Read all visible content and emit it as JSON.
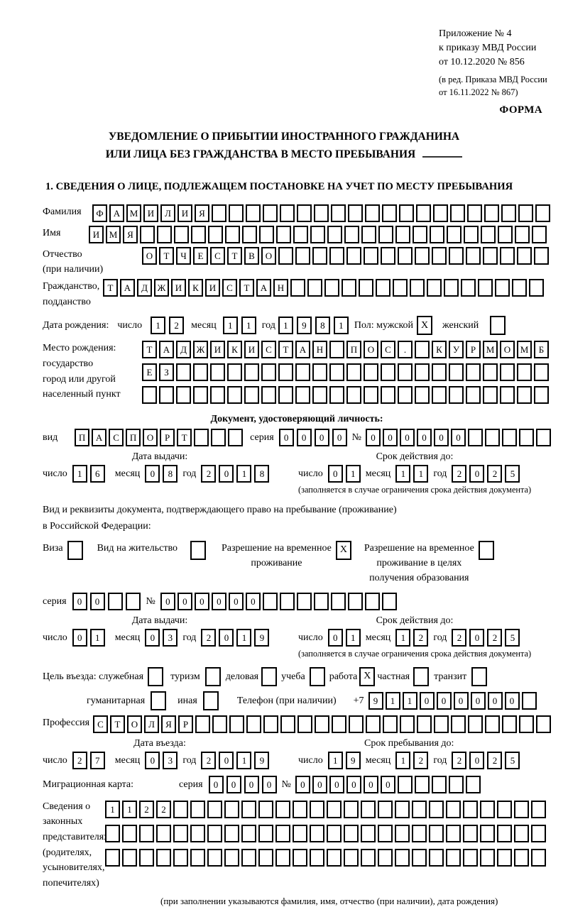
{
  "header": {
    "appendix_lines": [
      "Приложение № 4",
      "к приказу МВД России",
      "от 10.12.2020 № 856"
    ],
    "amendment_lines": [
      "(в ред. Приказа МВД России",
      "от 16.11.2022 № 867)"
    ],
    "form_label": "ФОРМА"
  },
  "title": {
    "line1": "УВЕДОМЛЕНИЕ О ПРИБЫТИИ ИНОСТРАННОГО ГРАЖДАНИНА",
    "line2": "ИЛИ ЛИЦА БЕЗ ГРАЖДАНСТВА В МЕСТО ПРЕБЫВАНИЯ"
  },
  "section1_heading": "1. СВЕДЕНИЯ О ЛИЦЕ, ПОДЛЕЖАЩЕМ ПОСТАНОВКЕ НА УЧЕТ ПО МЕСТУ ПРЕБЫВАНИЯ",
  "date_labels": {
    "day": "число",
    "month": "месяц",
    "year": "год"
  },
  "person": {
    "surname": {
      "label": "Фамилия",
      "chars": "ФАМИЛИЯ",
      "len": 27
    },
    "given_name": {
      "label": "Имя",
      "chars": "ИМЯ",
      "len": 27
    },
    "patronymic": {
      "label": "Отчество",
      "sublabel": "(при наличии)",
      "chars": "ОТЧЕСТВО",
      "len": 24
    },
    "citizenship": {
      "label": "Гражданство,",
      "sublabel": "подданство",
      "chars": "ТАДЖИКИСТАН",
      "len": 26
    },
    "birth_date": {
      "label": "Дата рождения:",
      "day": {
        "chars": "12",
        "len": 2
      },
      "month": {
        "chars": "11",
        "len": 2
      },
      "year": {
        "chars": "1981",
        "len": 4
      }
    },
    "sex": {
      "label": "Пол: мужской",
      "male": {
        "chars": "X",
        "len": 1
      },
      "female_label": "женский",
      "female": {
        "chars": "",
        "len": 1
      }
    },
    "birth_place": {
      "label_lines": [
        "Место рождения:",
        "государство",
        "город или другой",
        "населенный пункт"
      ],
      "rows": [
        {
          "chars": "ТАДЖИКИСТАН ПОС. КУРМОМБ",
          "len": 24
        },
        {
          "chars": "ЕЗ",
          "len": 24
        },
        {
          "chars": "",
          "len": 24
        }
      ]
    }
  },
  "identity_doc": {
    "heading": "Документ, удостоверяющий личность:",
    "kind_label": "вид",
    "kind": {
      "chars": "ПАСПОРТ",
      "len": 10
    },
    "series_label": "серия",
    "series": {
      "chars": "0000",
      "len": 4
    },
    "number_label": "№",
    "number": {
      "chars": "000000",
      "len": 11
    },
    "issue_caption": "Дата выдачи:",
    "issue_date": {
      "day": {
        "chars": "16",
        "len": 2
      },
      "month": {
        "chars": "08",
        "len": 2
      },
      "year": {
        "chars": "2018",
        "len": 4
      }
    },
    "validity_caption": "Срок действия до:",
    "valid_until": {
      "day": {
        "chars": "01",
        "len": 2
      },
      "month": {
        "chars": "11",
        "len": 2
      },
      "year": {
        "chars": "2025",
        "len": 4
      }
    },
    "validity_note": "(заполняется в случае ограничения срока действия документа)"
  },
  "residence_doc": {
    "intro_line1": "Вид и реквизиты документа, подтверждающего право на пребывание (проживание)",
    "intro_line2": "в Российской Федерации:",
    "visa_label": "Виза",
    "visa": {
      "chars": "",
      "len": 1
    },
    "residence_permit_label": "Вид на жительство",
    "residence_permit": {
      "chars": "",
      "len": 1
    },
    "temp_permit_label_lines": [
      "Разрешение на временное",
      "проживание"
    ],
    "temp_permit": {
      "chars": "X",
      "len": 1
    },
    "edu_permit_label_lines": [
      "Разрешение на временное",
      "проживание в целях",
      "получения образования"
    ],
    "edu_permit": {
      "chars": "",
      "len": 1
    },
    "series_label": "серия",
    "series": {
      "chars": "00",
      "len": 4
    },
    "number_label": "№",
    "number": {
      "chars": "000000",
      "len": 14
    },
    "issue_caption": "Дата выдачи:",
    "issue_date": {
      "day": {
        "chars": "01",
        "len": 2
      },
      "month": {
        "chars": "03",
        "len": 2
      },
      "year": {
        "chars": "2019",
        "len": 4
      }
    },
    "validity_caption": "Срок действия до:",
    "valid_until": {
      "day": {
        "chars": "01",
        "len": 2
      },
      "month": {
        "chars": "12",
        "len": 2
      },
      "year": {
        "chars": "2025",
        "len": 4
      }
    },
    "validity_note": "(заполняется в случае ограничения срока действия документа)"
  },
  "visit": {
    "purposes_row1": [
      {
        "label": "Цель въезда: служебная",
        "checked": {
          "chars": "",
          "len": 1
        }
      },
      {
        "label": "туризм",
        "checked": {
          "chars": "",
          "len": 1
        }
      },
      {
        "label": "деловая",
        "checked": {
          "chars": "",
          "len": 1
        }
      },
      {
        "label": "учеба",
        "checked": {
          "chars": "",
          "len": 1
        }
      },
      {
        "label": "работа",
        "checked": {
          "chars": "X",
          "len": 1
        }
      },
      {
        "label": "частная",
        "checked": {
          "chars": "",
          "len": 1
        }
      },
      {
        "label": "транзит",
        "checked": {
          "chars": "",
          "len": 1
        }
      }
    ],
    "purposes_row2": [
      {
        "label": "гуманитарная",
        "checked": {
          "chars": "",
          "len": 1
        }
      },
      {
        "label": "иная",
        "checked": {
          "chars": "",
          "len": 1
        }
      }
    ],
    "phone_label": "Телефон (при наличии)",
    "phone_prefix": "+7",
    "phone": {
      "chars": "911000000",
      "len": 10
    },
    "profession_label": "Профессия",
    "profession": {
      "chars": "СТОЛЯР",
      "len": 27
    },
    "entry_caption": "Дата въезда:",
    "entry_date": {
      "day": {
        "chars": "27",
        "len": 2
      },
      "month": {
        "chars": "03",
        "len": 2
      },
      "year": {
        "chars": "2019",
        "len": 4
      }
    },
    "stay_caption": "Срок пребывания до:",
    "stay_until": {
      "day": {
        "chars": "19",
        "len": 2
      },
      "month": {
        "chars": "12",
        "len": 2
      },
      "year": {
        "chars": "2025",
        "len": 4
      }
    }
  },
  "migration_card": {
    "label": "Миграционная карта:",
    "series_label": "серия",
    "series": {
      "chars": "0000",
      "len": 4
    },
    "number_label": "№",
    "number": {
      "chars": "000000",
      "len": 11
    }
  },
  "representatives": {
    "label_lines": [
      "Сведения о",
      "законных",
      "представителях",
      "(родителях,",
      "усыновителях,",
      "попечителях)"
    ],
    "rows": [
      {
        "chars": "1122",
        "len": 26
      },
      {
        "chars": "",
        "len": 26
      },
      {
        "chars": "",
        "len": 26
      }
    ],
    "note": "(при заполнении указываются фамилия, имя, отчество (при наличии), дата рождения)"
  }
}
